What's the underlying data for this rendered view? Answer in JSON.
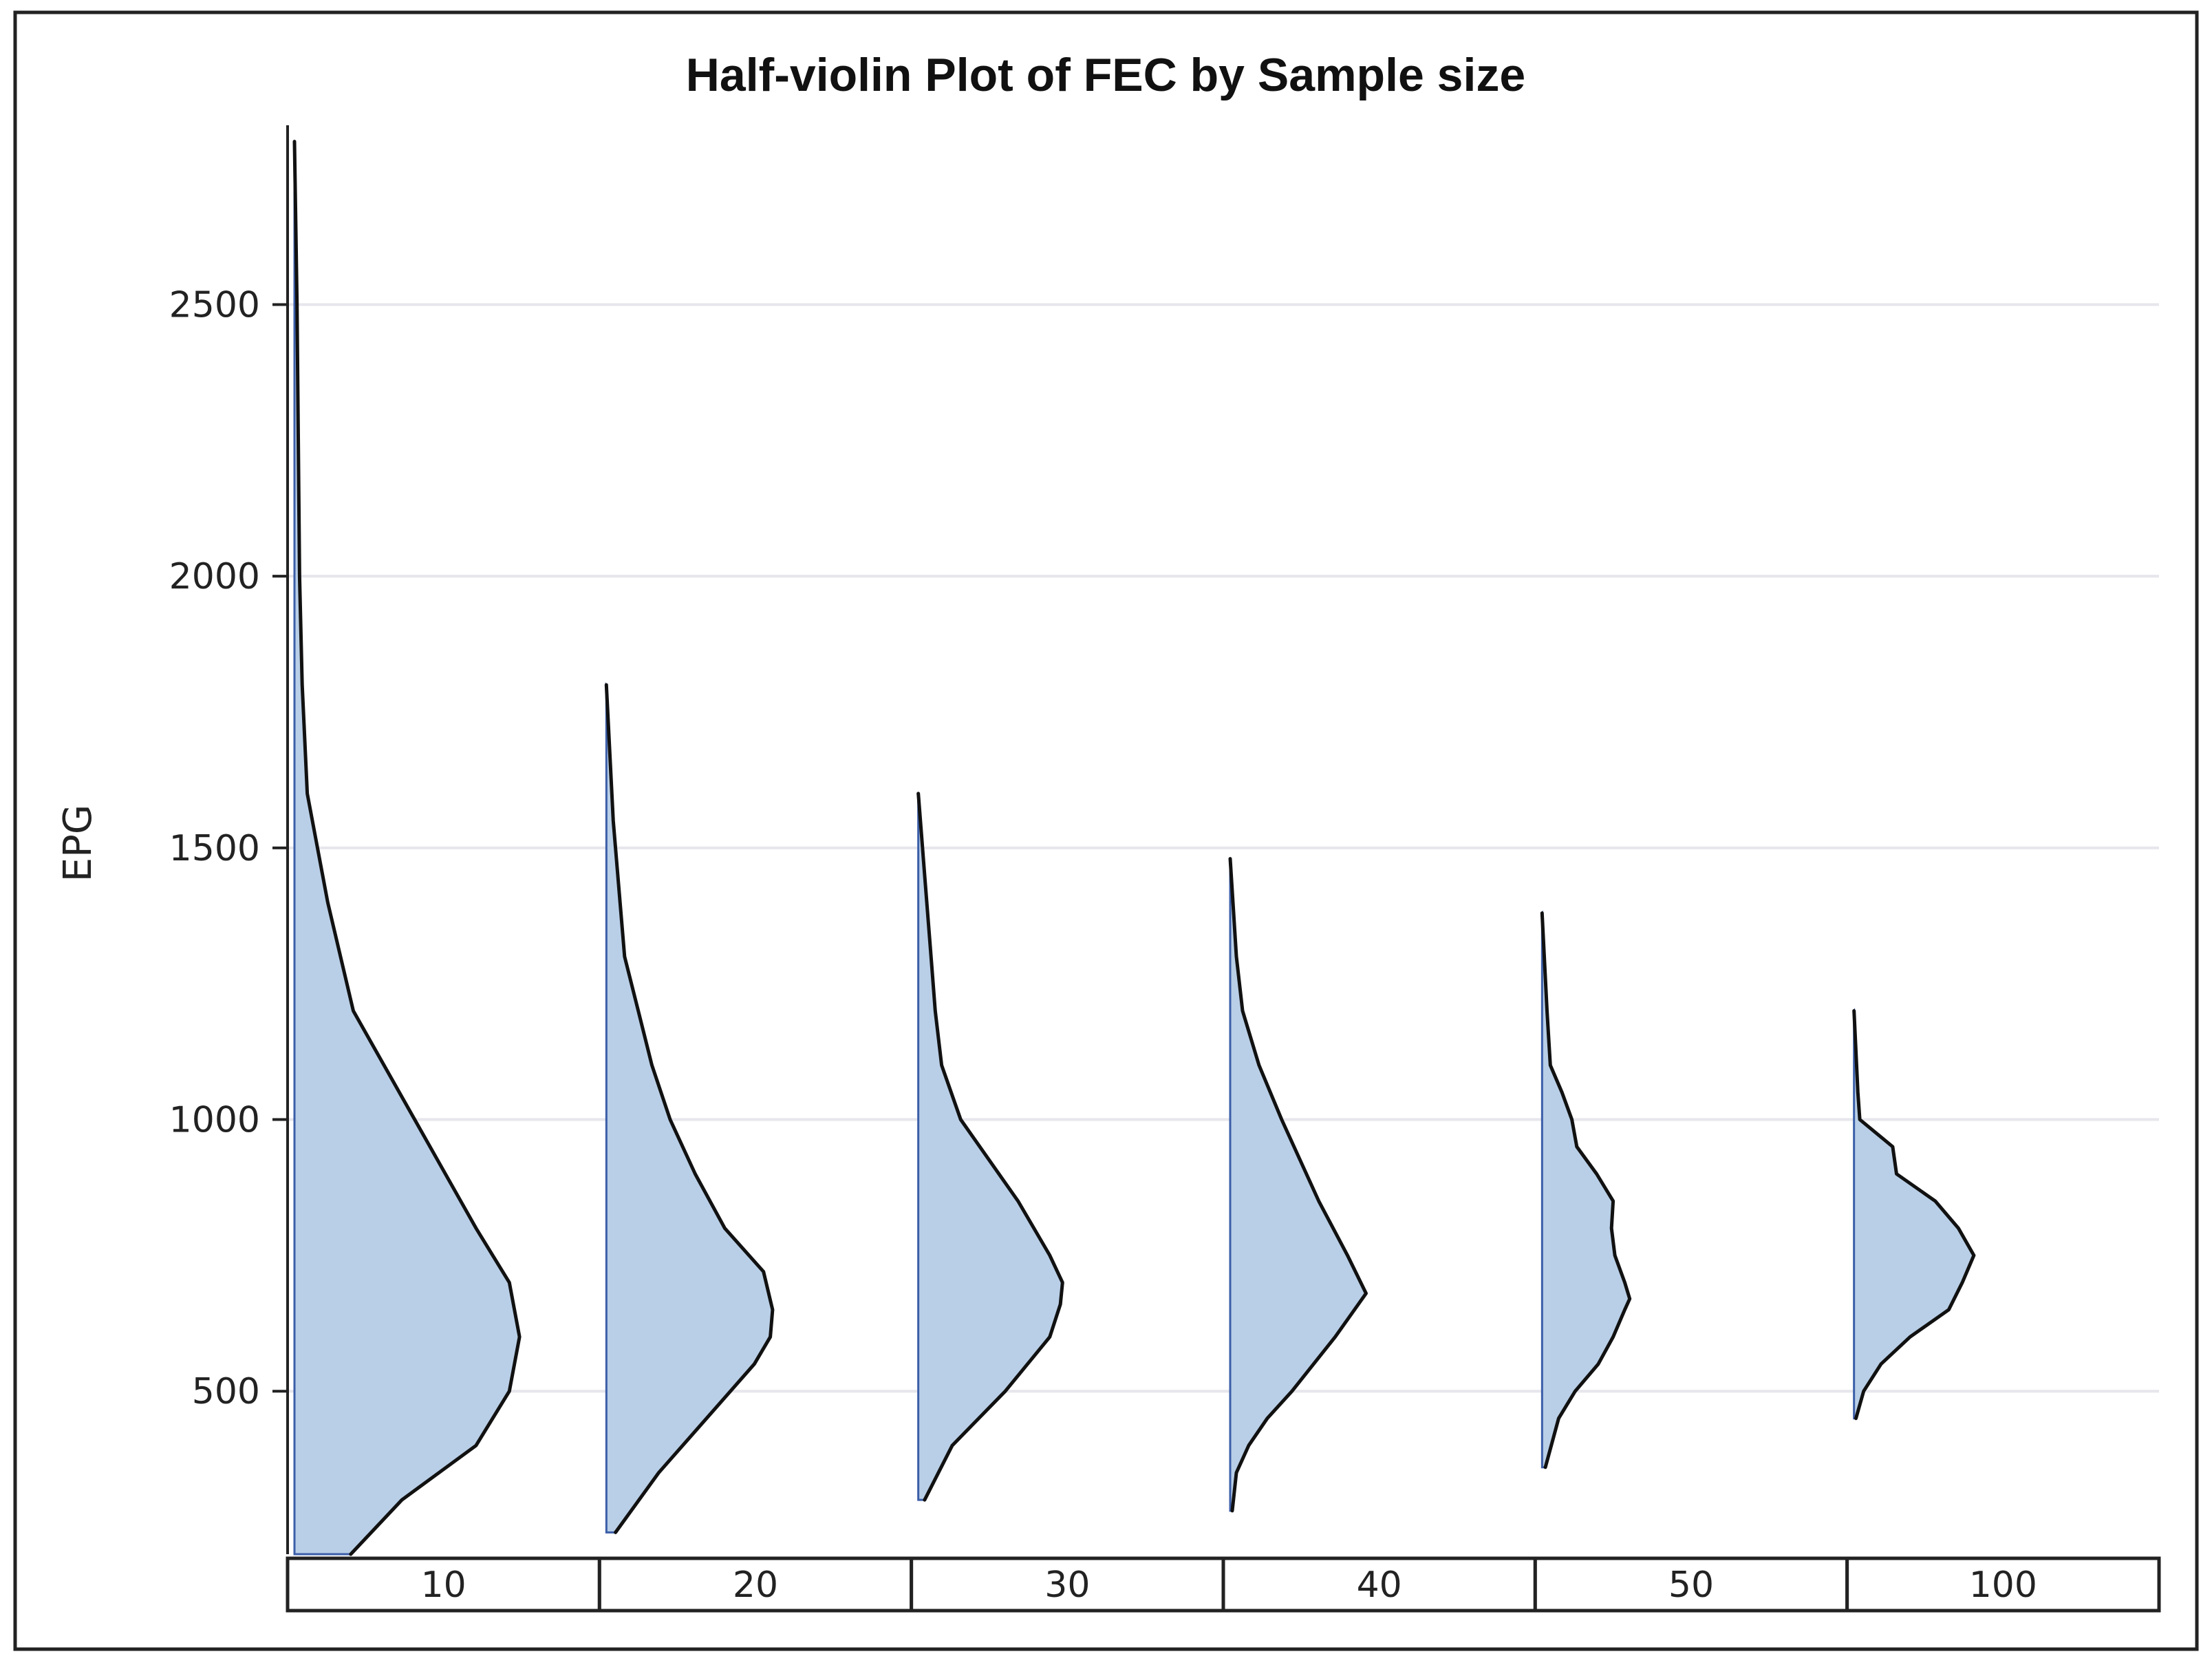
{
  "chart_data": {
    "type": "half-violin",
    "title": "Half-violin Plot of FEC by Sample size",
    "xlabel": "",
    "ylabel": "EPG",
    "ylim": [
      200,
      2830
    ],
    "yticks": [
      500,
      1000,
      1500,
      2000,
      2500
    ],
    "grid": true,
    "fill_color": "#b9cfe7",
    "outline_color": "#111111",
    "edge_color": "#3b5ea8",
    "categories": [
      "10",
      "20",
      "30",
      "40",
      "50",
      "100"
    ],
    "series": [
      {
        "name": "10",
        "min": 200,
        "max": 2800,
        "density_scale": 0.82,
        "profile": [
          [
            200,
            0.22
          ],
          [
            300,
            0.42
          ],
          [
            400,
            0.71
          ],
          [
            500,
            0.84
          ],
          [
            600,
            0.88
          ],
          [
            700,
            0.84
          ],
          [
            800,
            0.71
          ],
          [
            1000,
            0.47
          ],
          [
            1200,
            0.23
          ],
          [
            1400,
            0.13
          ],
          [
            1600,
            0.05
          ],
          [
            1800,
            0.03
          ],
          [
            2000,
            0.02
          ],
          [
            2500,
            0.01
          ],
          [
            2800,
            0.0
          ]
        ]
      },
      {
        "name": "20",
        "min": 240,
        "max": 1800,
        "density_scale": 0.73,
        "profile": [
          [
            240,
            0.04
          ],
          [
            350,
            0.23
          ],
          [
            450,
            0.44
          ],
          [
            550,
            0.65
          ],
          [
            600,
            0.72
          ],
          [
            650,
            0.73
          ],
          [
            720,
            0.69
          ],
          [
            800,
            0.52
          ],
          [
            900,
            0.39
          ],
          [
            1000,
            0.28
          ],
          [
            1100,
            0.2
          ],
          [
            1200,
            0.14
          ],
          [
            1300,
            0.08
          ],
          [
            1400,
            0.06
          ],
          [
            1550,
            0.03
          ],
          [
            1800,
            0.0
          ]
        ]
      },
      {
        "name": "30",
        "min": 300,
        "max": 1600,
        "density_scale": 0.68,
        "profile": [
          [
            300,
            0.03
          ],
          [
            400,
            0.16
          ],
          [
            500,
            0.41
          ],
          [
            600,
            0.62
          ],
          [
            660,
            0.67
          ],
          [
            700,
            0.68
          ],
          [
            750,
            0.62
          ],
          [
            850,
            0.47
          ],
          [
            1000,
            0.2
          ],
          [
            1100,
            0.11
          ],
          [
            1200,
            0.08
          ],
          [
            1300,
            0.06
          ],
          [
            1450,
            0.03
          ],
          [
            1600,
            0.0
          ]
        ]
      },
      {
        "name": "40",
        "min": 280,
        "max": 1480,
        "density_scale": 0.66,
        "profile": [
          [
            280,
            0.01
          ],
          [
            350,
            0.03
          ],
          [
            400,
            0.09
          ],
          [
            450,
            0.18
          ],
          [
            500,
            0.3
          ],
          [
            600,
            0.51
          ],
          [
            680,
            0.66
          ],
          [
            750,
            0.57
          ],
          [
            850,
            0.43
          ],
          [
            1000,
            0.25
          ],
          [
            1100,
            0.14
          ],
          [
            1200,
            0.06
          ],
          [
            1300,
            0.03
          ],
          [
            1480,
            0.0
          ]
        ]
      },
      {
        "name": "50",
        "min": 360,
        "max": 1380,
        "density_scale": 0.53,
        "profile": [
          [
            360,
            0.02
          ],
          [
            450,
            0.1
          ],
          [
            500,
            0.2
          ],
          [
            550,
            0.34
          ],
          [
            600,
            0.43
          ],
          [
            650,
            0.5
          ],
          [
            670,
            0.53
          ],
          [
            700,
            0.5
          ],
          [
            750,
            0.44
          ],
          [
            800,
            0.42
          ],
          [
            850,
            0.43
          ],
          [
            900,
            0.33
          ],
          [
            950,
            0.21
          ],
          [
            1000,
            0.18
          ],
          [
            1050,
            0.12
          ],
          [
            1100,
            0.05
          ],
          [
            1200,
            0.03
          ],
          [
            1380,
            0.0
          ]
        ]
      },
      {
        "name": "100",
        "min": 450,
        "max": 1200,
        "density_scale": 0.62,
        "profile": [
          [
            450,
            0.01
          ],
          [
            500,
            0.05
          ],
          [
            550,
            0.14
          ],
          [
            600,
            0.29
          ],
          [
            650,
            0.49
          ],
          [
            700,
            0.56
          ],
          [
            750,
            0.62
          ],
          [
            800,
            0.54
          ],
          [
            850,
            0.42
          ],
          [
            900,
            0.22
          ],
          [
            950,
            0.2
          ],
          [
            1000,
            0.03
          ],
          [
            1050,
            0.02
          ],
          [
            1200,
            0.0
          ]
        ]
      }
    ]
  }
}
